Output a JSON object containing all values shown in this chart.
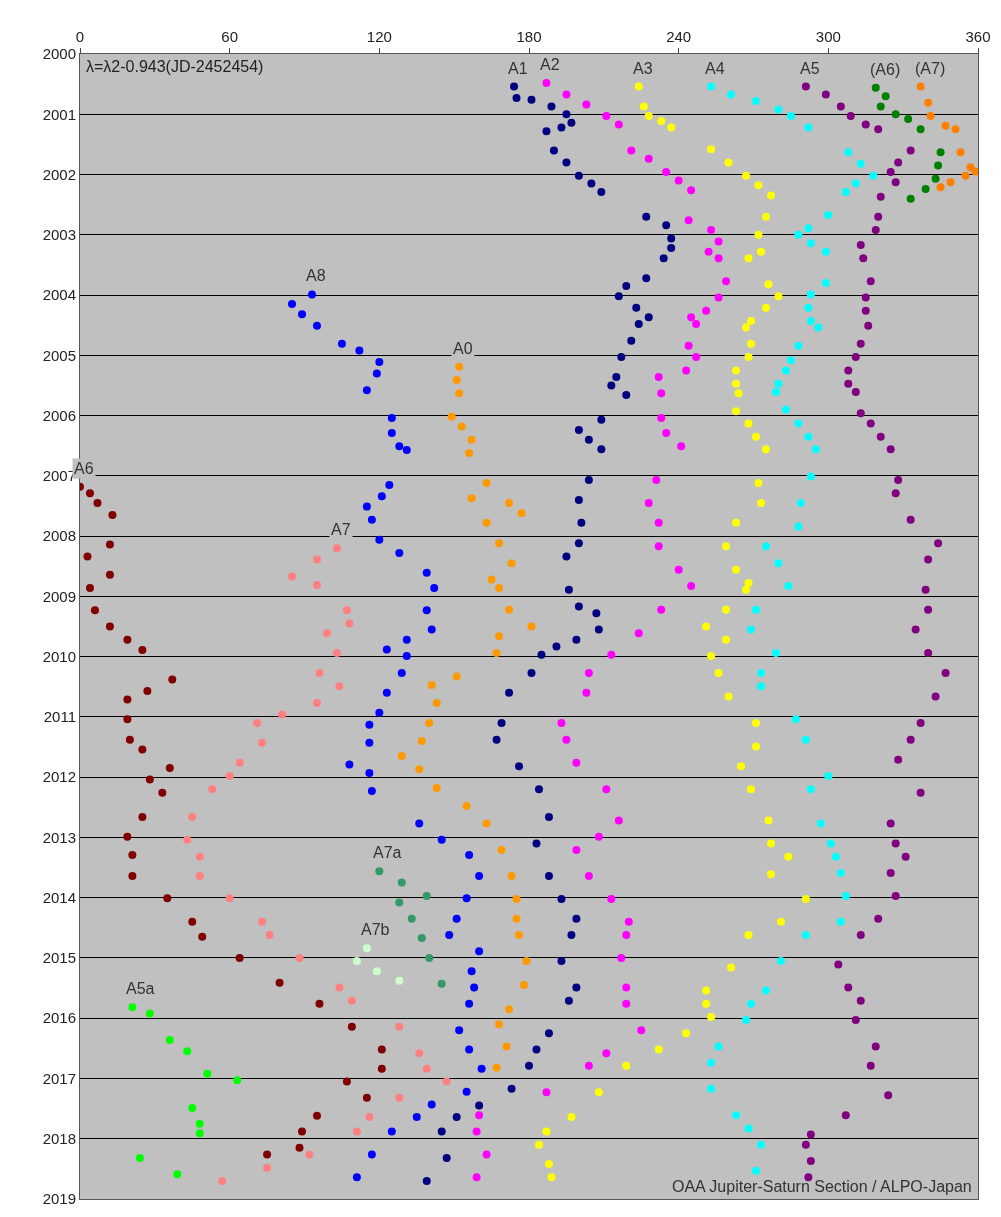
{
  "chart_data": {
    "type": "scatter",
    "marker": "circle",
    "grid": "y",
    "legend": false,
    "xlim": [
      0,
      360
    ],
    "xticks": [
      0,
      60,
      120,
      180,
      240,
      300,
      360
    ],
    "ylim": [
      2019,
      2000
    ],
    "yticks": [
      2000,
      2001,
      2002,
      2003,
      2004,
      2005,
      2006,
      2007,
      2008,
      2009,
      2010,
      2011,
      2012,
      2013,
      2014,
      2015,
      2016,
      2017,
      2018,
      2019
    ],
    "annotations": [
      "λ=λ2-0.943(JD-2452454)",
      "OAA Jupiter-Saturn Section / ALPO-Japan"
    ],
    "series": [
      {
        "name": "A1",
        "color": "#000080",
        "x": [
          174,
          175,
          181,
          189,
          195,
          197,
          193,
          187,
          190,
          195,
          200,
          205,
          209,
          227,
          235,
          237,
          237,
          234,
          227,
          219,
          216,
          223,
          228,
          224,
          221,
          217,
          215,
          213,
          219,
          209,
          200,
          204,
          209,
          204,
          200,
          201,
          200,
          195,
          196,
          200,
          207,
          208,
          199,
          191,
          185,
          181,
          172,
          169,
          167,
          176,
          184,
          188,
          183,
          188,
          193,
          199,
          197,
          193,
          199,
          196,
          188,
          183,
          180,
          173,
          160,
          151,
          145,
          147,
          139
        ],
        "values": [
          2000.54,
          2000.73,
          2000.76,
          2000.87,
          2001.0,
          2001.14,
          2001.22,
          2001.28,
          2001.6,
          2001.8,
          2002.02,
          2002.15,
          2002.29,
          2002.7,
          2002.84,
          2003.06,
          2003.22,
          2003.39,
          2003.72,
          2003.85,
          2004.02,
          2004.21,
          2004.37,
          2004.48,
          2004.76,
          2005.03,
          2005.36,
          2005.5,
          2005.66,
          2006.07,
          2006.24,
          2006.4,
          2006.56,
          2007.07,
          2007.4,
          2007.78,
          2008.12,
          2008.34,
          2008.89,
          2009.17,
          2009.28,
          2009.55,
          2009.72,
          2009.83,
          2009.97,
          2010.27,
          2010.6,
          2011.1,
          2011.38,
          2011.82,
          2012.2,
          2012.66,
          2013.1,
          2013.64,
          2014.02,
          2014.35,
          2014.62,
          2015.05,
          2015.49,
          2015.71,
          2016.25,
          2016.52,
          2016.79,
          2017.17,
          2017.45,
          2017.64,
          2017.88,
          2018.32,
          2018.7
        ]
      },
      {
        "name": "A8",
        "color": "#0000ff",
        "x": [
          93,
          85,
          89,
          95,
          105,
          112,
          120,
          119,
          115,
          125,
          125,
          128,
          131,
          124,
          121,
          115,
          117,
          120,
          128,
          139,
          142,
          139,
          141,
          131,
          123,
          131,
          129,
          123,
          120,
          116,
          116,
          108,
          116,
          117,
          136,
          145,
          156,
          160,
          155,
          151,
          148,
          160,
          157,
          158,
          156,
          152,
          156,
          161,
          155,
          141,
          135,
          125,
          117,
          111
        ],
        "values": [
          2003.99,
          2004.15,
          2004.32,
          2004.51,
          2004.81,
          2004.92,
          2005.11,
          2005.3,
          2005.58,
          2006.04,
          2006.29,
          2006.51,
          2006.57,
          2007.15,
          2007.34,
          2007.51,
          2007.73,
          2008.06,
          2008.28,
          2008.61,
          2008.86,
          2009.23,
          2009.55,
          2009.72,
          2009.88,
          2009.99,
          2010.27,
          2010.6,
          2010.93,
          2011.13,
          2011.43,
          2011.79,
          2011.93,
          2012.23,
          2012.77,
          2013.04,
          2013.29,
          2013.64,
          2014.01,
          2014.35,
          2014.62,
          2014.89,
          2015.22,
          2015.49,
          2015.76,
          2016.2,
          2016.52,
          2016.84,
          2017.22,
          2017.43,
          2017.64,
          2017.88,
          2018.26,
          2018.64
        ]
      },
      {
        "name": "A2",
        "color": "#ff00ff",
        "x": [
          187,
          195,
          203,
          211,
          216,
          221,
          228,
          235,
          240,
          245,
          244,
          253,
          256,
          252,
          256,
          259,
          256,
          251,
          245,
          247,
          244,
          247,
          243,
          232,
          233,
          233,
          235,
          241,
          231,
          228,
          232,
          232,
          240,
          245,
          233,
          224,
          213,
          204,
          203,
          193,
          195,
          199,
          211,
          216,
          208,
          199,
          204,
          213,
          220,
          219,
          217,
          219,
          219,
          225,
          211,
          204,
          187,
          160,
          159,
          163,
          159
        ],
        "values": [
          2000.48,
          2000.67,
          2000.84,
          2001.03,
          2001.17,
          2001.6,
          2001.74,
          2001.96,
          2002.1,
          2002.26,
          2002.76,
          2002.92,
          2003.11,
          2003.28,
          2003.39,
          2003.77,
          2004.04,
          2004.26,
          2004.37,
          2004.48,
          2004.84,
          2005.03,
          2005.25,
          2005.36,
          2005.63,
          2006.04,
          2006.29,
          2006.51,
          2007.07,
          2007.45,
          2007.78,
          2008.17,
          2008.56,
          2008.83,
          2009.22,
          2009.61,
          2009.97,
          2010.27,
          2010.6,
          2011.1,
          2011.38,
          2011.76,
          2012.2,
          2012.72,
          2012.99,
          2013.21,
          2013.64,
          2014.02,
          2014.4,
          2014.62,
          2015.0,
          2015.49,
          2015.76,
          2016.2,
          2016.58,
          2016.79,
          2017.23,
          2017.61,
          2017.88,
          2018.26,
          2018.64
        ]
      },
      {
        "name": "A3",
        "color": "#ffff00",
        "x": [
          224,
          226,
          228,
          233,
          237,
          253,
          260,
          267,
          272,
          277,
          275,
          272,
          273,
          268,
          276,
          280,
          275,
          269,
          267,
          269,
          268,
          263,
          263,
          264,
          263,
          268,
          271,
          275,
          272,
          273,
          263,
          259,
          263,
          268,
          267,
          259,
          251,
          259,
          253,
          256,
          260,
          271,
          271,
          265,
          269,
          276,
          277,
          284,
          277,
          291,
          281,
          268,
          261,
          251,
          251,
          253,
          243,
          232,
          219,
          208,
          197,
          187,
          184,
          188,
          189
        ],
        "values": [
          2000.54,
          2000.87,
          2001.03,
          2001.11,
          2001.22,
          2001.58,
          2001.8,
          2002.02,
          2002.18,
          2002.35,
          2002.7,
          2003.0,
          2003.28,
          2003.39,
          2003.82,
          2004.02,
          2004.21,
          2004.43,
          2004.54,
          2004.81,
          2005.03,
          2005.25,
          2005.47,
          2005.63,
          2005.93,
          2006.13,
          2006.35,
          2006.56,
          2007.12,
          2007.45,
          2007.78,
          2008.17,
          2008.56,
          2008.78,
          2008.89,
          2009.22,
          2009.5,
          2009.72,
          2009.99,
          2010.27,
          2010.66,
          2011.1,
          2011.49,
          2011.82,
          2012.2,
          2012.72,
          2013.1,
          2013.32,
          2013.61,
          2014.02,
          2014.4,
          2014.62,
          2015.16,
          2015.54,
          2015.76,
          2015.98,
          2016.25,
          2016.52,
          2016.79,
          2017.23,
          2017.64,
          2017.88,
          2018.1,
          2018.42,
          2018.64
        ]
      },
      {
        "name": "A4",
        "color": "#00ffff",
        "x": [
          253,
          261,
          271,
          280,
          285,
          292,
          308,
          313,
          318,
          311,
          307,
          300,
          292,
          288,
          293,
          299,
          299,
          293,
          292,
          293,
          296,
          288,
          285,
          283,
          280,
          279,
          283,
          288,
          292,
          295,
          293,
          289,
          288,
          275,
          280,
          284,
          271,
          269,
          279,
          273,
          273,
          287,
          291,
          300,
          293,
          297,
          301,
          303,
          305,
          307,
          305,
          291,
          281,
          275,
          269,
          267,
          256,
          253,
          253,
          263,
          268,
          273,
          271
        ],
        "values": [
          2000.54,
          2000.67,
          2000.78,
          2000.92,
          2001.03,
          2001.22,
          2001.63,
          2001.82,
          2002.02,
          2002.15,
          2002.29,
          2002.67,
          2002.89,
          2003.0,
          2003.14,
          2003.28,
          2003.8,
          2003.99,
          2004.21,
          2004.43,
          2004.54,
          2004.84,
          2005.08,
          2005.25,
          2005.47,
          2005.61,
          2005.9,
          2006.13,
          2006.35,
          2006.56,
          2007.01,
          2007.45,
          2007.84,
          2008.17,
          2008.45,
          2008.83,
          2009.22,
          2009.55,
          2009.94,
          2010.27,
          2010.49,
          2011.04,
          2011.38,
          2011.98,
          2012.2,
          2012.77,
          2013.1,
          2013.32,
          2013.59,
          2013.97,
          2014.4,
          2014.62,
          2015.05,
          2015.54,
          2015.76,
          2016.03,
          2016.47,
          2016.74,
          2017.17,
          2017.61,
          2017.83,
          2018.1,
          2018.53
        ]
      },
      {
        "name": "A5",
        "color": "#800080",
        "x": [
          291,
          299,
          305,
          309,
          315,
          320,
          333,
          328,
          325,
          327,
          321,
          320,
          319,
          313,
          314,
          317,
          315,
          315,
          316,
          313,
          311,
          308,
          308,
          311,
          313,
          317,
          321,
          325,
          328,
          327,
          333,
          344,
          340,
          339,
          340,
          335,
          340,
          347,
          343,
          337,
          333,
          328,
          337,
          325,
          327,
          331,
          325,
          327,
          320,
          313,
          304,
          308,
          313,
          311,
          319,
          317,
          324,
          307,
          293,
          291,
          293,
          292
        ],
        "values": [
          2000.54,
          2000.67,
          2000.87,
          2001.03,
          2001.17,
          2001.25,
          2001.6,
          2001.8,
          2001.96,
          2002.13,
          2002.37,
          2002.7,
          2002.92,
          2003.17,
          2003.39,
          2003.77,
          2004.04,
          2004.26,
          2004.51,
          2004.81,
          2005.03,
          2005.25,
          2005.47,
          2005.61,
          2005.96,
          2006.13,
          2006.35,
          2006.56,
          2007.07,
          2007.29,
          2007.73,
          2008.12,
          2008.39,
          2008.89,
          2009.22,
          2009.55,
          2009.94,
          2010.27,
          2010.66,
          2011.1,
          2011.38,
          2011.71,
          2012.26,
          2012.77,
          2013.1,
          2013.32,
          2013.59,
          2013.97,
          2014.35,
          2014.62,
          2015.11,
          2015.49,
          2015.71,
          2016.03,
          2016.47,
          2016.79,
          2017.28,
          2017.61,
          2017.93,
          2018.1,
          2018.37,
          2018.64
        ]
      },
      {
        "name": "(A6)",
        "color": "#008000",
        "x": [
          319,
          323,
          321,
          327,
          332,
          337,
          345,
          344,
          343,
          339,
          333
        ],
        "values": [
          2000.56,
          2000.7,
          2000.87,
          2001.0,
          2001.08,
          2001.25,
          2001.63,
          2001.85,
          2002.07,
          2002.24,
          2002.4
        ]
      },
      {
        "name": "(A7)",
        "color": "#ff7f00",
        "x": [
          337,
          340,
          341,
          347,
          351,
          353,
          357,
          359,
          355,
          349,
          345
        ],
        "values": [
          2000.54,
          2000.81,
          2001.03,
          2001.19,
          2001.25,
          2001.63,
          2001.88,
          2001.95,
          2002.02,
          2002.13,
          2002.21
        ]
      },
      {
        "name": "A0",
        "color": "#ff9900",
        "x": [
          152,
          151,
          152,
          149,
          153,
          157,
          156,
          163,
          157,
          172,
          177,
          163,
          168,
          173,
          165,
          168,
          172,
          181,
          168,
          167,
          151,
          141,
          143,
          140,
          137,
          129,
          136,
          143,
          155,
          163,
          169,
          173,
          175,
          175,
          176,
          179,
          178,
          172,
          168,
          171,
          167
        ],
        "values": [
          2005.19,
          2005.41,
          2005.63,
          2006.02,
          2006.18,
          2006.4,
          2006.62,
          2007.12,
          2007.37,
          2007.45,
          2007.62,
          2007.78,
          2008.12,
          2008.45,
          2008.72,
          2008.86,
          2009.22,
          2009.5,
          2009.66,
          2009.94,
          2010.33,
          2010.47,
          2010.77,
          2011.1,
          2011.4,
          2011.65,
          2011.87,
          2012.18,
          2012.48,
          2012.77,
          2013.21,
          2013.64,
          2014.02,
          2014.35,
          2014.62,
          2015.05,
          2015.45,
          2015.85,
          2016.1,
          2016.47,
          2016.82
        ]
      },
      {
        "name": "A6",
        "color": "#800000",
        "x": [
          0,
          4,
          7,
          13,
          12,
          3,
          12,
          4,
          6,
          12,
          19,
          25,
          37,
          27,
          19,
          19,
          20,
          25,
          36,
          28,
          33,
          25,
          19,
          21,
          21,
          35,
          45,
          49,
          64,
          80,
          96,
          109,
          121,
          121,
          107,
          115,
          95,
          89,
          88,
          75
        ],
        "values": [
          2007.18,
          2007.29,
          2007.45,
          2007.65,
          2008.14,
          2008.34,
          2008.64,
          2008.86,
          2009.23,
          2009.5,
          2009.72,
          2009.89,
          2010.38,
          2010.57,
          2010.71,
          2011.04,
          2011.38,
          2011.54,
          2011.85,
          2012.04,
          2012.26,
          2012.66,
          2012.99,
          2013.29,
          2013.64,
          2014.01,
          2014.4,
          2014.65,
          2015.0,
          2015.41,
          2015.76,
          2016.14,
          2016.52,
          2016.84,
          2017.05,
          2017.32,
          2017.62,
          2017.88,
          2018.15,
          2018.26
        ]
      },
      {
        "name": "A7",
        "color": "#ff8080",
        "x": [
          103,
          95,
          85,
          95,
          107,
          108,
          99,
          103,
          96,
          104,
          95,
          81,
          71,
          73,
          64,
          60,
          53,
          45,
          43,
          48,
          48,
          60,
          73,
          76,
          88,
          104,
          109,
          128,
          136,
          139,
          147,
          128,
          116,
          111,
          92,
          75,
          57
        ],
        "values": [
          2008.2,
          2008.39,
          2008.67,
          2008.81,
          2009.23,
          2009.45,
          2009.61,
          2009.94,
          2010.27,
          2010.49,
          2010.77,
          2010.96,
          2011.1,
          2011.43,
          2011.76,
          2011.98,
          2012.2,
          2012.66,
          2013.04,
          2013.32,
          2013.64,
          2014.01,
          2014.4,
          2014.62,
          2015.0,
          2015.49,
          2015.71,
          2016.14,
          2016.58,
          2016.84,
          2017.05,
          2017.32,
          2017.64,
          2017.88,
          2018.26,
          2018.48,
          2018.7
        ]
      },
      {
        "name": "A7a",
        "color": "#339966",
        "x": [
          120,
          129,
          139,
          128,
          133,
          137,
          140,
          145
        ],
        "values": [
          2013.56,
          2013.75,
          2013.97,
          2014.08,
          2014.35,
          2014.67,
          2015.0,
          2015.43
        ]
      },
      {
        "name": "A7b",
        "color": "#ccffcc",
        "x": [
          115,
          111,
          119,
          128
        ],
        "values": [
          2014.84,
          2015.05,
          2015.22,
          2015.38
        ]
      },
      {
        "name": "A5a",
        "color": "#00ff00",
        "x": [
          21,
          28,
          36,
          43,
          51,
          63,
          45,
          48,
          48,
          24,
          39
        ],
        "values": [
          2015.82,
          2015.92,
          2016.36,
          2016.55,
          2016.92,
          2017.03,
          2017.49,
          2017.75,
          2017.91,
          2018.32,
          2018.59
        ]
      }
    ]
  }
}
